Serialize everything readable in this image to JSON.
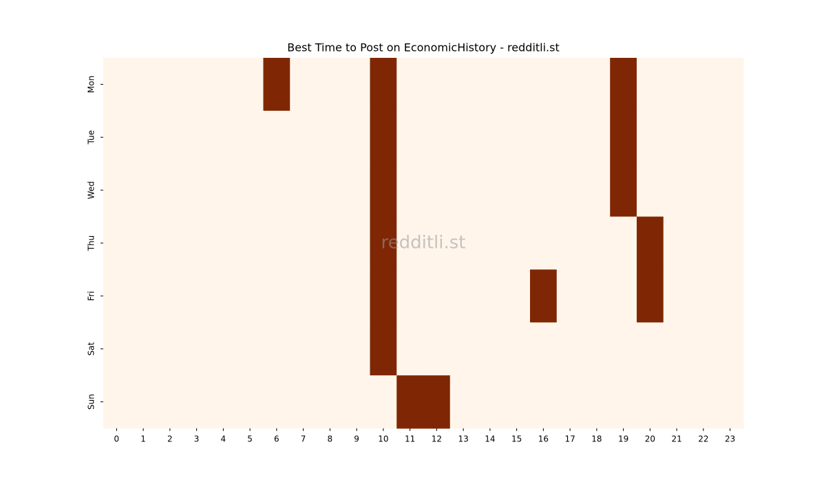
{
  "chart_data": {
    "type": "heatmap",
    "title": "Best Time to Post on EconomicHistory - redditli.st",
    "watermark": "redditli.st",
    "x": [
      0,
      1,
      2,
      3,
      4,
      5,
      6,
      7,
      8,
      9,
      10,
      11,
      12,
      13,
      14,
      15,
      16,
      17,
      18,
      19,
      20,
      21,
      22,
      23
    ],
    "y": [
      "Mon",
      "Tue",
      "Wed",
      "Thu",
      "Fri",
      "Sat",
      "Sun"
    ],
    "colors": [
      "#fff5eb",
      "#7f2704"
    ],
    "values": [
      [
        0,
        0,
        0,
        0,
        0,
        0,
        1,
        0,
        0,
        0,
        1,
        0,
        0,
        0,
        0,
        0,
        0,
        0,
        0,
        1,
        0,
        0,
        0,
        0
      ],
      [
        0,
        0,
        0,
        0,
        0,
        0,
        0,
        0,
        0,
        0,
        1,
        0,
        0,
        0,
        0,
        0,
        0,
        0,
        0,
        1,
        0,
        0,
        0,
        0
      ],
      [
        0,
        0,
        0,
        0,
        0,
        0,
        0,
        0,
        0,
        0,
        1,
        0,
        0,
        0,
        0,
        0,
        0,
        0,
        0,
        1,
        0,
        0,
        0,
        0
      ],
      [
        0,
        0,
        0,
        0,
        0,
        0,
        0,
        0,
        0,
        0,
        1,
        0,
        0,
        0,
        0,
        0,
        0,
        0,
        0,
        0,
        1,
        0,
        0,
        0
      ],
      [
        0,
        0,
        0,
        0,
        0,
        0,
        0,
        0,
        0,
        0,
        1,
        0,
        0,
        0,
        0,
        0,
        1,
        0,
        0,
        0,
        1,
        0,
        0,
        0
      ],
      [
        0,
        0,
        0,
        0,
        0,
        0,
        0,
        0,
        0,
        0,
        1,
        0,
        0,
        0,
        0,
        0,
        0,
        0,
        0,
        0,
        0,
        0,
        0,
        0
      ],
      [
        0,
        0,
        0,
        0,
        0,
        0,
        0,
        0,
        0,
        0,
        0,
        1,
        1,
        0,
        0,
        0,
        0,
        0,
        0,
        0,
        0,
        0,
        0,
        0
      ]
    ]
  }
}
